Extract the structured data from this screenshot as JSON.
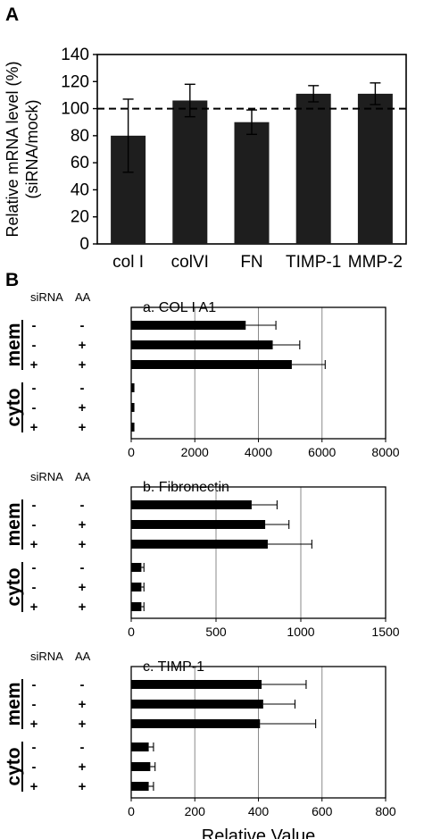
{
  "panel_labels": {
    "a": "A",
    "b": "B"
  },
  "chart_data": [
    {
      "type": "bar",
      "panel": "A",
      "ylabel_line1": "Relative mRNA level (%)",
      "ylabel_line2": "(siRNA/mock)",
      "categories": [
        "col I",
        "colVI",
        "FN",
        "TIMP-1",
        "MMP-2"
      ],
      "values": [
        80,
        106,
        90,
        111,
        111
      ],
      "errors": [
        27,
        12,
        9,
        6,
        8
      ],
      "ylim": [
        0,
        140
      ],
      "yticks": [
        "0",
        "20",
        "40",
        "60",
        "80",
        "100",
        "120",
        "140"
      ],
      "reference_line": 100,
      "bar_color": "#1e1e1e"
    },
    {
      "type": "bar",
      "orientation": "horizontal",
      "title": "a. COL I A1",
      "col_headers": [
        "siRNA",
        "AA"
      ],
      "groups": [
        "mem",
        "cyto"
      ],
      "row_signs": [
        [
          "-",
          "-"
        ],
        [
          "-",
          "+"
        ],
        [
          "+",
          "+"
        ],
        [
          "-",
          "-"
        ],
        [
          "-",
          "+"
        ],
        [
          "+",
          "+"
        ]
      ],
      "values": [
        3600,
        4450,
        5050,
        100,
        100,
        100
      ],
      "errors": [
        950,
        850,
        1050,
        0,
        0,
        0
      ],
      "xlim": [
        0,
        8000
      ],
      "xticks": [
        "0",
        "2000",
        "4000",
        "6000",
        "8000"
      ]
    },
    {
      "type": "bar",
      "orientation": "horizontal",
      "title": "b. Fibronectin",
      "col_headers": [
        "siRNA",
        "AA"
      ],
      "groups": [
        "mem",
        "cyto"
      ],
      "row_signs": [
        [
          "-",
          "-"
        ],
        [
          "-",
          "+"
        ],
        [
          "+",
          "+"
        ],
        [
          "-",
          "-"
        ],
        [
          "-",
          "+"
        ],
        [
          "+",
          "+"
        ]
      ],
      "values": [
        710,
        790,
        805,
        60,
        60,
        60
      ],
      "errors": [
        150,
        140,
        260,
        15,
        15,
        15
      ],
      "xlim": [
        0,
        1500
      ],
      "xticks": [
        "0",
        "500",
        "1000",
        "1500"
      ]
    },
    {
      "type": "bar",
      "orientation": "horizontal",
      "title": "c. TIMP-1",
      "col_headers": [
        "siRNA",
        "AA"
      ],
      "groups": [
        "mem",
        "cyto"
      ],
      "row_signs": [
        [
          "-",
          "-"
        ],
        [
          "-",
          "+"
        ],
        [
          "+",
          "+"
        ],
        [
          "-",
          "-"
        ],
        [
          "-",
          "+"
        ],
        [
          "+",
          "+"
        ]
      ],
      "values": [
        410,
        415,
        405,
        55,
        60,
        55
      ],
      "errors": [
        140,
        100,
        175,
        15,
        15,
        15
      ],
      "xlim": [
        0,
        800
      ],
      "xticks": [
        "0",
        "200",
        "400",
        "600",
        "800"
      ],
      "xlabel": "Relative Value"
    }
  ]
}
